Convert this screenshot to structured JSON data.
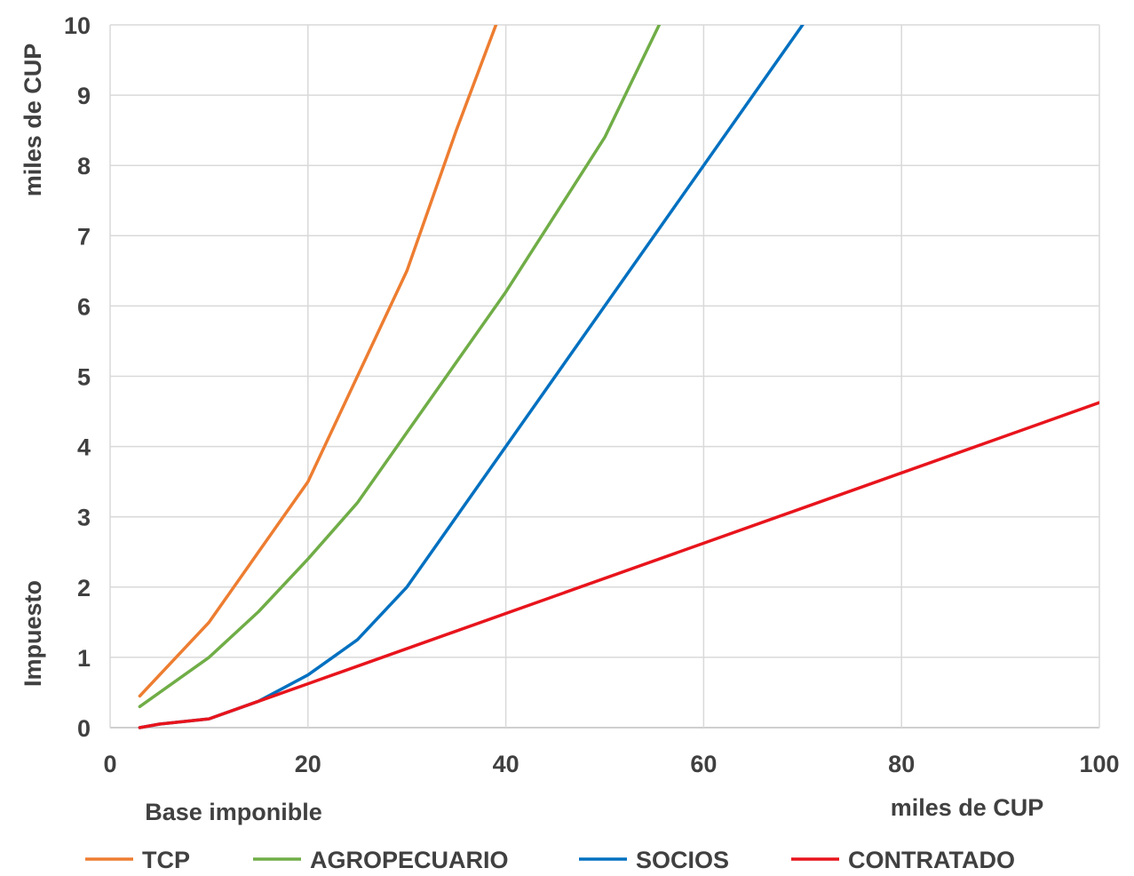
{
  "chart_data": {
    "type": "line",
    "ylabel": "Impuesto",
    "yunit": "miles de CUP",
    "xlabel": "Base imponible",
    "xunit": "miles de CUP",
    "xlim": [
      0,
      100
    ],
    "ylim": [
      0,
      10
    ],
    "xticks": [
      0,
      20,
      40,
      60,
      80,
      100
    ],
    "yticks": [
      0,
      1,
      2,
      3,
      4,
      5,
      6,
      7,
      8,
      9,
      10
    ],
    "grid": true,
    "legend_position": "bottom",
    "series": [
      {
        "name": "TCP",
        "color": "#ED7D31",
        "points": [
          [
            3,
            0.45
          ],
          [
            10,
            1.5
          ],
          [
            15,
            2.5
          ],
          [
            20,
            3.5
          ],
          [
            25,
            5.0
          ],
          [
            30,
            6.5
          ],
          [
            35,
            8.5
          ],
          [
            39,
            10.0
          ]
        ]
      },
      {
        "name": "AGROPECUARIO",
        "color": "#70AD47",
        "points": [
          [
            3,
            0.3
          ],
          [
            10,
            1.0
          ],
          [
            15,
            1.65
          ],
          [
            20,
            2.4
          ],
          [
            25,
            3.2
          ],
          [
            30,
            4.2
          ],
          [
            40,
            6.2
          ],
          [
            50,
            8.4
          ],
          [
            55.5,
            10.0
          ]
        ]
      },
      {
        "name": "SOCIOS",
        "color": "#0070C0",
        "points": [
          [
            3,
            0.0
          ],
          [
            5,
            0.05
          ],
          [
            10,
            0.125
          ],
          [
            15,
            0.375
          ],
          [
            20,
            0.75
          ],
          [
            25,
            1.25
          ],
          [
            30,
            2.0
          ],
          [
            40,
            4.0
          ],
          [
            60,
            8.0
          ],
          [
            70,
            10.0
          ]
        ]
      },
      {
        "name": "CONTRATADO",
        "color": "#E8141C",
        "points": [
          [
            3,
            0.0
          ],
          [
            5,
            0.05
          ],
          [
            10,
            0.125
          ],
          [
            15,
            0.375
          ],
          [
            20,
            0.625
          ],
          [
            100,
            4.625
          ]
        ]
      }
    ]
  }
}
